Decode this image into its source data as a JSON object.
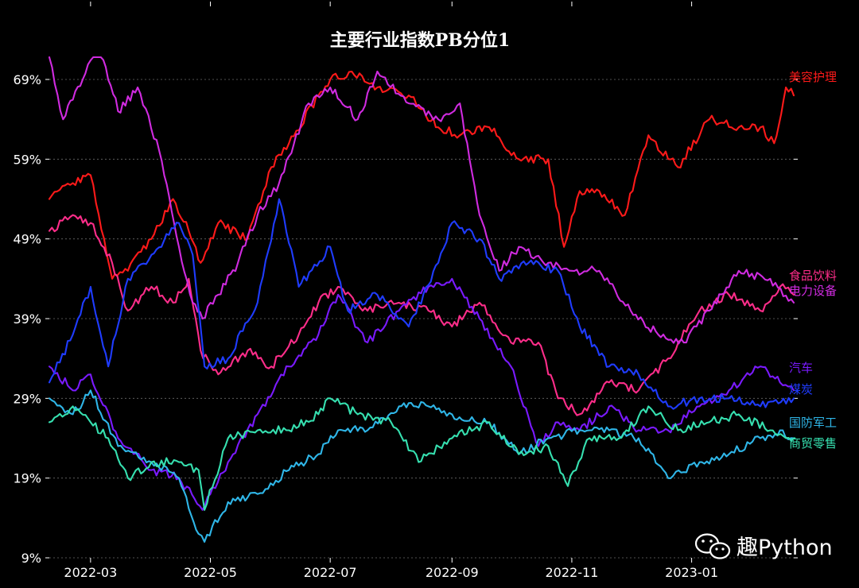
{
  "chart_data": {
    "type": "line",
    "title": "主要行业指数PB分位1",
    "xlabel": "",
    "ylabel": "",
    "ylim": [
      9,
      72
    ],
    "y_ticks": [
      9,
      19,
      29,
      39,
      49,
      59,
      69
    ],
    "y_tick_labels": [
      "9%",
      "19%",
      "29%",
      "39%",
      "49%",
      "59%",
      "69%"
    ],
    "x_range": [
      "2022-02-08",
      "2023-02-22"
    ],
    "x_ticks": [
      "2022-03-01",
      "2022-05-01",
      "2022-07-01",
      "2022-09-01",
      "2022-11-01",
      "2023-01-01"
    ],
    "x_tick_labels": [
      "2022-03",
      "2022-05",
      "2022-07",
      "2022-09",
      "2022-11",
      "2023-01"
    ],
    "grid": "horizontal dashed",
    "legend": "labels at right end of lines",
    "series": [
      {
        "name": "美容护理",
        "color": "#ff1a1a",
        "x": [
          "2022-02-08",
          "2022-02-20",
          "2022-03-01",
          "2022-03-12",
          "2022-03-20",
          "2022-04-01",
          "2022-04-12",
          "2022-04-20",
          "2022-04-26",
          "2022-05-05",
          "2022-05-20",
          "2022-06-01",
          "2022-06-10",
          "2022-06-25",
          "2022-07-01",
          "2022-07-12",
          "2022-07-25",
          "2022-08-10",
          "2022-08-25",
          "2022-09-05",
          "2022-09-20",
          "2022-10-05",
          "2022-10-20",
          "2022-10-28",
          "2022-11-05",
          "2022-11-15",
          "2022-11-28",
          "2022-12-10",
          "2022-12-25",
          "2023-01-10",
          "2023-01-25",
          "2023-02-05",
          "2023-02-12",
          "2023-02-18",
          "2023-02-22"
        ],
        "values": [
          54,
          56,
          57,
          44,
          45,
          49,
          54,
          50,
          46,
          51,
          49,
          58,
          61,
          67,
          69,
          70,
          68,
          67,
          63,
          62,
          63,
          59,
          59,
          48,
          55,
          55,
          52,
          62,
          58,
          64,
          63,
          63,
          61,
          68,
          67
        ]
      },
      {
        "name": "食品饮料",
        "color": "#ff2d8a",
        "x": [
          "2022-02-08",
          "2022-02-20",
          "2022-03-01",
          "2022-03-12",
          "2022-03-20",
          "2022-04-01",
          "2022-04-12",
          "2022-04-20",
          "2022-04-26",
          "2022-05-05",
          "2022-05-20",
          "2022-06-01",
          "2022-06-15",
          "2022-06-25",
          "2022-07-05",
          "2022-07-20",
          "2022-08-05",
          "2022-08-20",
          "2022-09-01",
          "2022-09-15",
          "2022-10-01",
          "2022-10-15",
          "2022-10-25",
          "2022-11-05",
          "2022-11-20",
          "2022-12-05",
          "2022-12-20",
          "2023-01-05",
          "2023-01-20",
          "2023-02-05",
          "2023-02-15",
          "2023-02-22"
        ],
        "values": [
          50,
          52,
          51,
          46,
          40,
          43,
          41,
          44,
          35,
          32,
          35,
          33,
          37,
          41,
          43,
          40,
          41,
          40,
          38,
          41,
          36,
          36,
          29,
          27,
          31,
          30,
          34,
          40,
          42,
          40,
          43,
          42
        ]
      },
      {
        "name": "电力设备",
        "color": "#d02be0",
        "x": [
          "2022-02-08",
          "2022-02-15",
          "2022-02-25",
          "2022-03-05",
          "2022-03-15",
          "2022-03-25",
          "2022-04-05",
          "2022-04-15",
          "2022-04-22",
          "2022-04-27",
          "2022-05-05",
          "2022-05-15",
          "2022-05-25",
          "2022-06-05",
          "2022-06-20",
          "2022-07-01",
          "2022-07-15",
          "2022-07-25",
          "2022-08-10",
          "2022-08-25",
          "2022-09-05",
          "2022-09-15",
          "2022-09-25",
          "2022-10-05",
          "2022-10-20",
          "2022-11-01",
          "2022-11-15",
          "2022-12-01",
          "2022-12-15",
          "2022-12-28",
          "2023-01-10",
          "2023-01-25",
          "2023-02-10",
          "2023-02-22"
        ],
        "values": [
          72,
          64,
          69,
          74,
          65,
          68,
          60,
          48,
          41,
          39,
          42,
          46,
          52,
          56,
          66,
          68,
          64,
          70,
          66,
          64,
          66,
          52,
          45,
          48,
          46,
          45,
          45,
          40,
          37,
          36,
          40,
          45,
          44,
          41
        ]
      },
      {
        "name": "汽车",
        "color": "#7a1aff",
        "x": [
          "2022-02-08",
          "2022-02-20",
          "2022-03-01",
          "2022-03-15",
          "2022-04-01",
          "2022-04-15",
          "2022-04-27",
          "2022-05-10",
          "2022-05-25",
          "2022-06-10",
          "2022-06-25",
          "2022-07-05",
          "2022-07-20",
          "2022-08-05",
          "2022-08-20",
          "2022-09-01",
          "2022-09-15",
          "2022-10-01",
          "2022-10-15",
          "2022-10-25",
          "2022-11-05",
          "2022-11-20",
          "2022-12-05",
          "2022-12-20",
          "2023-01-05",
          "2023-01-20",
          "2023-02-05",
          "2023-02-15",
          "2023-02-22"
        ],
        "values": [
          33,
          30,
          32,
          24,
          20,
          19,
          15,
          21,
          27,
          33,
          37,
          42,
          36,
          40,
          43,
          44,
          39,
          33,
          23,
          26,
          25,
          28,
          25,
          25,
          28,
          30,
          33,
          31,
          30
        ]
      },
      {
        "name": "煤炭",
        "color": "#1f3cff",
        "x": [
          "2022-02-08",
          "2022-02-20",
          "2022-03-01",
          "2022-03-10",
          "2022-03-20",
          "2022-04-01",
          "2022-04-15",
          "2022-04-22",
          "2022-04-28",
          "2022-05-10",
          "2022-05-25",
          "2022-06-05",
          "2022-06-15",
          "2022-07-01",
          "2022-07-10",
          "2022-07-25",
          "2022-08-10",
          "2022-08-25",
          "2022-09-01",
          "2022-09-15",
          "2022-09-25",
          "2022-10-10",
          "2022-10-25",
          "2022-11-05",
          "2022-11-20",
          "2022-12-05",
          "2022-12-20",
          "2023-01-05",
          "2023-01-20",
          "2023-02-05",
          "2023-02-22"
        ],
        "values": [
          31,
          37,
          43,
          33,
          44,
          47,
          51,
          47,
          33,
          34,
          41,
          54,
          43,
          48,
          40,
          42,
          38,
          46,
          51,
          49,
          44,
          46,
          45,
          38,
          33,
          32,
          28,
          29,
          29,
          28,
          29
        ]
      },
      {
        "name": "国防军工",
        "color": "#2fb6e8",
        "x": [
          "2022-02-08",
          "2022-02-20",
          "2022-03-01",
          "2022-03-15",
          "2022-04-01",
          "2022-04-15",
          "2022-04-25",
          "2022-04-28",
          "2022-05-10",
          "2022-05-25",
          "2022-06-10",
          "2022-06-25",
          "2022-07-05",
          "2022-07-20",
          "2022-08-05",
          "2022-08-20",
          "2022-09-01",
          "2022-09-20",
          "2022-10-05",
          "2022-10-20",
          "2022-11-05",
          "2022-11-20",
          "2022-12-05",
          "2022-12-20",
          "2023-01-05",
          "2023-01-20",
          "2023-02-05",
          "2023-02-15",
          "2023-02-22"
        ],
        "values": [
          29,
          27,
          30,
          23,
          21,
          19,
          12,
          11,
          16,
          17,
          20,
          22,
          25,
          25,
          28,
          28,
          27,
          26,
          22,
          24,
          25,
          25,
          24,
          19,
          21,
          22,
          24,
          25,
          24
        ]
      },
      {
        "name": "商贸零售",
        "color": "#36e0b0",
        "x": [
          "2022-02-08",
          "2022-02-20",
          "2022-03-01",
          "2022-03-10",
          "2022-03-20",
          "2022-04-01",
          "2022-04-15",
          "2022-04-25",
          "2022-04-28",
          "2022-05-10",
          "2022-05-25",
          "2022-06-10",
          "2022-06-25",
          "2022-07-01",
          "2022-07-15",
          "2022-08-01",
          "2022-08-15",
          "2022-09-01",
          "2022-09-20",
          "2022-10-05",
          "2022-10-20",
          "2022-10-30",
          "2022-11-10",
          "2022-11-25",
          "2022-12-10",
          "2022-12-25",
          "2023-01-10",
          "2023-01-25",
          "2023-02-10",
          "2023-02-22"
        ],
        "values": [
          26,
          28,
          26,
          24,
          19,
          21,
          21,
          20,
          15,
          24,
          25,
          25,
          27,
          29,
          27,
          26,
          21,
          24,
          26,
          22,
          23,
          18,
          24,
          24,
          28,
          25,
          26,
          27,
          25,
          24
        ]
      }
    ]
  },
  "watermark": {
    "text": "趣Python",
    "icon": "wechat-icon"
  }
}
